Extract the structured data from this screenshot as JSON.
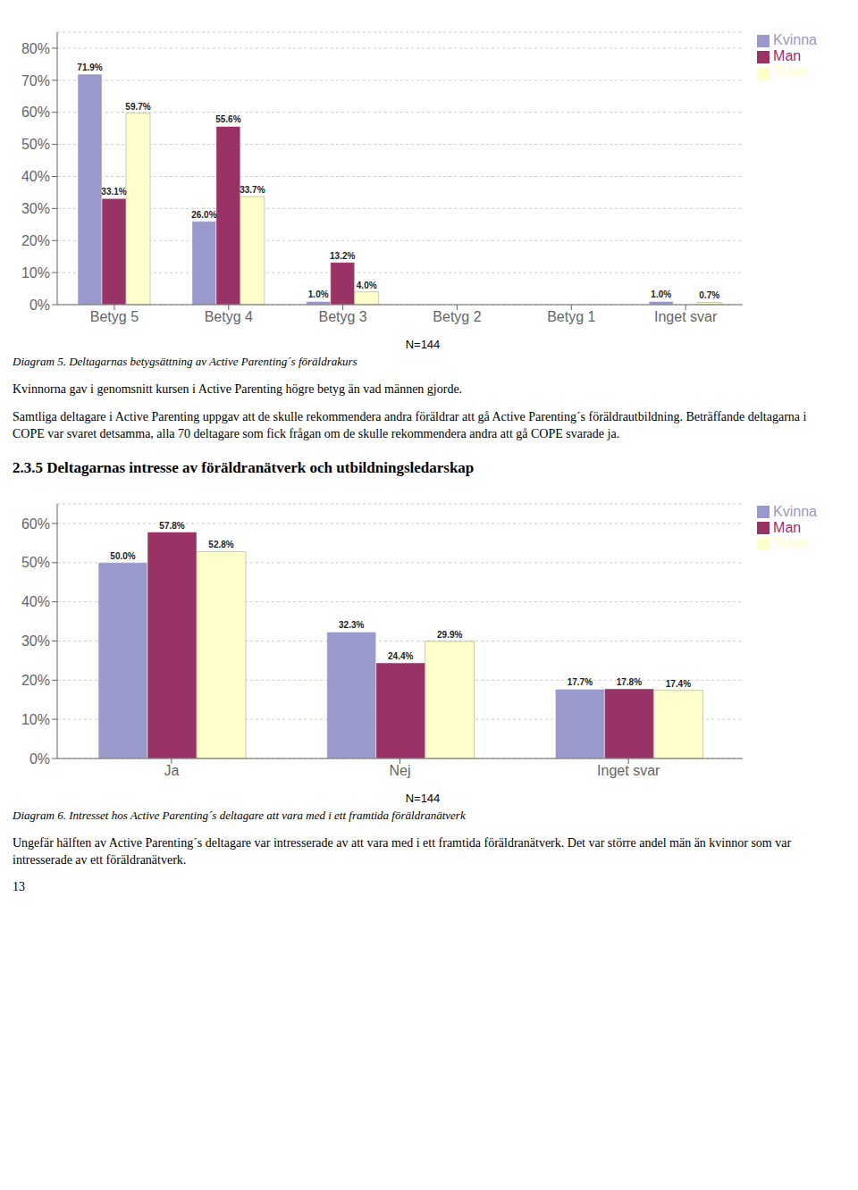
{
  "chart_data": [
    {
      "type": "bar",
      "categories": [
        "Betyg 5",
        "Betyg 4",
        "Betyg 3",
        "Betyg 2",
        "Betyg 1",
        "Inget svar"
      ],
      "series": [
        {
          "name": "Kvinna",
          "color": "#9999CC",
          "values": [
            71.9,
            26.0,
            1.0,
            0.0,
            0.0,
            1.0
          ],
          "value_labels": [
            "71.9%",
            "26.0%",
            "1.0%",
            null,
            null,
            "1.0%"
          ]
        },
        {
          "name": "Man",
          "color": "#993366",
          "values": [
            33.1,
            55.6,
            13.2,
            0.0,
            0.0,
            0.0
          ],
          "value_labels": [
            "33.1%",
            "55.6%",
            "13.2%",
            null,
            null,
            null
          ]
        },
        {
          "name": "Totalt",
          "color": "#FFFFCC",
          "values": [
            59.7,
            33.7,
            4.0,
            0.0,
            0.0,
            0.7
          ],
          "value_labels": [
            "59.7%",
            "33.7%",
            "4.0%",
            null,
            null,
            "0.7%"
          ]
        }
      ],
      "ylim": [
        0,
        85
      ],
      "yticks": [
        {
          "value": 0,
          "label": "0%"
        },
        {
          "value": 10,
          "label": "10%"
        },
        {
          "value": 20,
          "label": "20%"
        },
        {
          "value": 30,
          "label": "30%"
        },
        {
          "value": 40,
          "label": "40%"
        },
        {
          "value": 50,
          "label": "50%"
        },
        {
          "value": 60,
          "label": "60%"
        },
        {
          "value": 70,
          "label": "70%"
        },
        {
          "value": 80,
          "label": "80%"
        }
      ],
      "grid": true,
      "legend": "upper right",
      "data_labels": true,
      "annotations": [
        "N=144",
        "Diagram 5. Deltagarnas betygsättning av Active Parenting´s föräldrakurs",
        "Kvinnorna gav i genomsnitt kursen i Active Parenting högre betyg än vad männen gjorde.",
        "Samtliga deltagare i Active Parenting uppgav att de skulle rekommendera andra föräldrar att gå Active Parenting´s föräldrautbildning. Beträffande deltagarna i COPE var svaret detsamma, alla 70 deltagare som fick frågan om de skulle rekommendera andra att gå COPE svarade ja."
      ]
    },
    {
      "type": "bar",
      "title": "2.3.5 Deltagarnas intresse av föräldranätverk och utbildningsledarskap",
      "categories": [
        "Ja",
        "Nej",
        "Inget svar"
      ],
      "series": [
        {
          "name": "Kvinna",
          "color": "#9999CC",
          "values": [
            50.0,
            32.3,
            17.7
          ],
          "value_labels": [
            "50.0%",
            "32.3%",
            "17.7%"
          ]
        },
        {
          "name": "Man",
          "color": "#993366",
          "values": [
            57.8,
            24.4,
            17.8
          ],
          "value_labels": [
            "57.8%",
            "24.4%",
            "17.8%"
          ]
        },
        {
          "name": "Totalt",
          "color": "#FFFFCC",
          "values": [
            52.8,
            29.9,
            17.4
          ],
          "value_labels": [
            "52.8%",
            "29.9%",
            "17.4%"
          ]
        }
      ],
      "ylim": [
        0,
        65
      ],
      "yticks": [
        {
          "value": 0,
          "label": "0%"
        },
        {
          "value": 10,
          "label": "10%"
        },
        {
          "value": 20,
          "label": "20%"
        },
        {
          "value": 30,
          "label": "30%"
        },
        {
          "value": 40,
          "label": "40%"
        },
        {
          "value": 50,
          "label": "50%"
        },
        {
          "value": 60,
          "label": "60%"
        }
      ],
      "grid": true,
      "legend": "upper right",
      "data_labels": true,
      "annotations": [
        "N=144",
        "Diagram 6. Intresset hos Active Parenting´s deltagare att vara med i ett framtida föräldranätverk",
        "Ungefär hälften av Active Parenting´s deltagare var intresserade av att vara med i ett framtida föräldranätverk. Det var större andel män än kvinnor som var intresserade av ett föräldranätverk.",
        "13"
      ]
    }
  ]
}
